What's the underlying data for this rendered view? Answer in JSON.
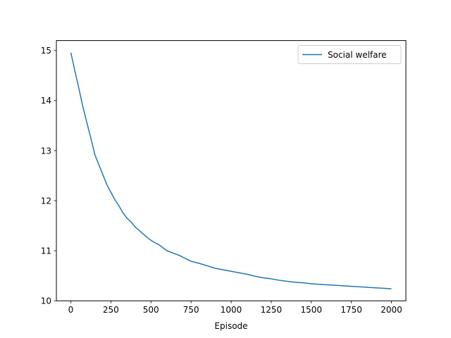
{
  "chart_data": {
    "type": "line",
    "title": "",
    "xlabel": "Episode",
    "ylabel": "",
    "xlim": [
      -90,
      2090
    ],
    "ylim": [
      10,
      15.2
    ],
    "xticks": [
      0,
      250,
      500,
      750,
      1000,
      1250,
      1500,
      1750,
      2000
    ],
    "yticks": [
      10,
      11,
      12,
      13,
      14,
      15
    ],
    "xtick_labels": [
      "0",
      "250",
      "500",
      "750",
      "1000",
      "1250",
      "1500",
      "1750",
      "2000"
    ],
    "ytick_labels": [
      "10",
      "11",
      "12",
      "13",
      "14",
      "15"
    ],
    "grid": false,
    "legend_position": "top-right",
    "series": [
      {
        "name": "Social welfare",
        "color": "#1f77b4",
        "x": [
          0,
          10,
          25,
          50,
          75,
          100,
          125,
          150,
          175,
          200,
          225,
          250,
          275,
          300,
          325,
          350,
          375,
          400,
          425,
          450,
          475,
          500,
          525,
          550,
          575,
          600,
          625,
          650,
          675,
          700,
          725,
          750,
          775,
          800,
          850,
          900,
          950,
          1000,
          1050,
          1100,
          1150,
          1200,
          1250,
          1300,
          1350,
          1400,
          1450,
          1500,
          1550,
          1600,
          1650,
          1700,
          1750,
          1800,
          1850,
          1900,
          1950,
          2000
        ],
        "y": [
          14.96,
          14.82,
          14.6,
          14.25,
          13.88,
          13.56,
          13.25,
          12.92,
          12.72,
          12.52,
          12.32,
          12.17,
          12.02,
          11.9,
          11.76,
          11.65,
          11.58,
          11.48,
          11.41,
          11.34,
          11.27,
          11.21,
          11.16,
          11.12,
          11.06,
          11.0,
          10.97,
          10.94,
          10.91,
          10.87,
          10.83,
          10.79,
          10.77,
          10.75,
          10.7,
          10.65,
          10.62,
          10.59,
          10.56,
          10.53,
          10.49,
          10.46,
          10.44,
          10.41,
          10.39,
          10.37,
          10.36,
          10.34,
          10.33,
          10.32,
          10.31,
          10.3,
          10.29,
          10.28,
          10.27,
          10.26,
          10.25,
          10.24
        ]
      }
    ]
  }
}
